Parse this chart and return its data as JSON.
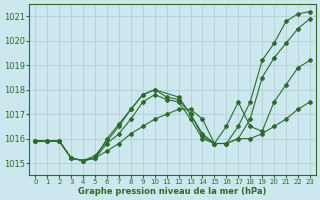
{
  "xlabel": "Graphe pression niveau de la mer (hPa)",
  "bg_color": "#cce8ee",
  "grid_color": "#aacccc",
  "line_color": "#2d6a2d",
  "ylim": [
    1014.5,
    1021.5
  ],
  "xlim": [
    -0.5,
    23.5
  ],
  "yticks": [
    1015,
    1016,
    1017,
    1018,
    1019,
    1020,
    1021
  ],
  "xticks": [
    0,
    1,
    2,
    3,
    4,
    5,
    6,
    7,
    8,
    9,
    10,
    11,
    12,
    13,
    14,
    15,
    16,
    17,
    18,
    19,
    20,
    21,
    22,
    23
  ],
  "lines": [
    {
      "x": [
        0,
        1,
        2,
        3,
        4,
        5,
        6,
        7,
        8,
        9,
        10,
        11,
        12,
        13,
        14,
        15,
        16,
        17,
        18,
        19,
        20,
        21,
        22,
        23
      ],
      "y": [
        1015.9,
        1015.9,
        1015.9,
        1015.2,
        1015.1,
        1015.2,
        1016.0,
        1016.6,
        1017.2,
        1017.8,
        1018.0,
        1017.7,
        1017.6,
        1017.0,
        1016.1,
        1015.8,
        1015.8,
        1016.5,
        1017.5,
        1019.2,
        1019.9,
        1020.8,
        1021.1,
        1021.2
      ]
    },
    {
      "x": [
        0,
        1,
        2,
        3,
        4,
        5,
        6,
        7,
        8,
        9,
        10,
        11,
        12,
        13,
        14,
        15,
        16,
        17,
        18,
        19,
        20,
        21,
        22,
        23
      ],
      "y": [
        1015.9,
        1015.9,
        1015.9,
        1015.2,
        1015.1,
        1015.2,
        1015.8,
        1016.2,
        1016.8,
        1017.5,
        1017.8,
        1017.6,
        1017.5,
        1016.8,
        1016.0,
        1015.8,
        1015.8,
        1016.0,
        1016.8,
        1018.5,
        1019.3,
        1019.9,
        1020.5,
        1020.9
      ]
    },
    {
      "x": [
        0,
        1,
        2,
        3,
        4,
        5,
        7,
        8,
        9,
        10,
        12,
        13,
        14,
        15,
        16,
        17,
        18,
        19,
        20,
        21,
        22,
        23
      ],
      "y": [
        1015.9,
        1015.9,
        1015.9,
        1015.2,
        1015.1,
        1015.3,
        1016.5,
        1017.2,
        1017.8,
        1018.0,
        1017.7,
        1017.0,
        1016.2,
        1015.8,
        1016.5,
        1017.5,
        1016.5,
        1016.3,
        1017.5,
        1018.2,
        1018.9,
        1019.2
      ]
    },
    {
      "x": [
        0,
        1,
        2,
        3,
        4,
        5,
        6,
        7,
        8,
        9,
        10,
        11,
        12,
        13,
        14,
        15,
        16,
        17,
        18,
        19,
        20,
        21,
        22,
        23
      ],
      "y": [
        1015.9,
        1015.9,
        1015.9,
        1015.2,
        1015.1,
        1015.2,
        1015.5,
        1015.8,
        1016.2,
        1016.5,
        1016.8,
        1017.0,
        1017.2,
        1017.2,
        1016.8,
        1015.8,
        1015.8,
        1016.0,
        1016.0,
        1016.2,
        1016.5,
        1016.8,
        1017.2,
        1017.5
      ]
    }
  ]
}
